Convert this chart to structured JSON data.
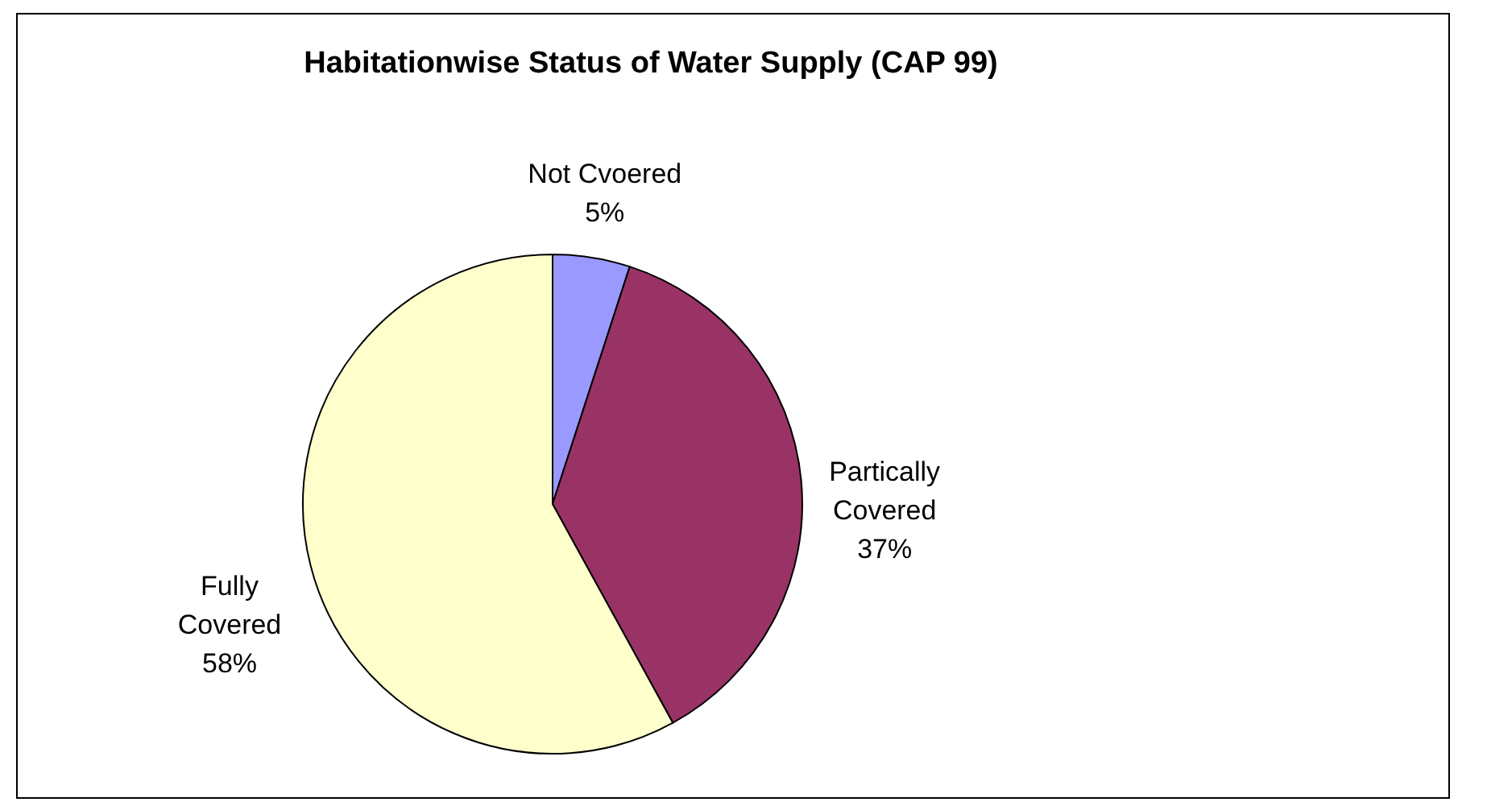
{
  "chart_data": {
    "type": "pie",
    "title": "Habitationwise Status of Water Supply (CAP 99)",
    "categories": [
      "Not Cvoered",
      "Partically Covered",
      "Fully Covered"
    ],
    "values": [
      5,
      37,
      58
    ],
    "colors": [
      "#9999ff",
      "#993366",
      "#ffffcc"
    ],
    "value_labels": [
      "5%",
      "37%",
      "58%"
    ]
  }
}
